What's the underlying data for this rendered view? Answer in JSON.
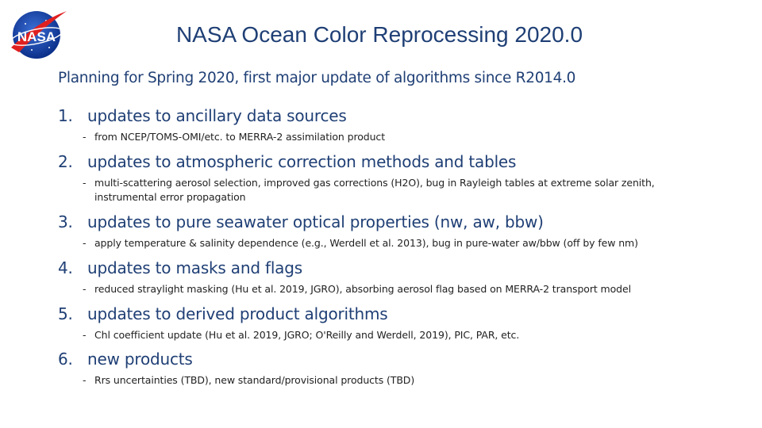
{
  "title": "NASA Ocean Color Reprocessing 2020.0",
  "subtitle": "Planning for Spring 2020, first major update of algorithms since R2014.0",
  "logo_text": "NASA",
  "items": [
    {
      "num": "1.",
      "label": "updates to ancillary data sources",
      "sub": "from NCEP/TOMS-OMI/etc. to MERRA-2 assimilation product"
    },
    {
      "num": "2.",
      "label": "updates to atmospheric correction methods and tables",
      "sub": "multi-scattering aerosol selection, improved gas corrections (H2O), bug in Rayleigh tables at extreme solar zenith, instrumental error propagation"
    },
    {
      "num": "3.",
      "label": "updates to pure seawater optical properties (nw, aw, bbw)",
      "sub": "apply temperature & salinity dependence (e.g., Werdell et al. 2013), bug in pure-water aw/bbw (off by few nm)"
    },
    {
      "num": "4.",
      "label": "updates to masks and flags",
      "sub": "reduced straylight masking (Hu et al. 2019, JGRO), absorbing aerosol flag based on MERRA-2 transport model"
    },
    {
      "num": "5.",
      "label": "updates to derived product algorithms",
      "sub": "Chl coefficient update (Hu et al. 2019, JGRO; O'Reilly and Werdell, 2019), PIC, PAR, etc."
    },
    {
      "num": "6.",
      "label": "new products",
      "sub": "Rrs uncertainties (TBD), new standard/provisional products (TBD)"
    }
  ],
  "sub_marker": "-"
}
